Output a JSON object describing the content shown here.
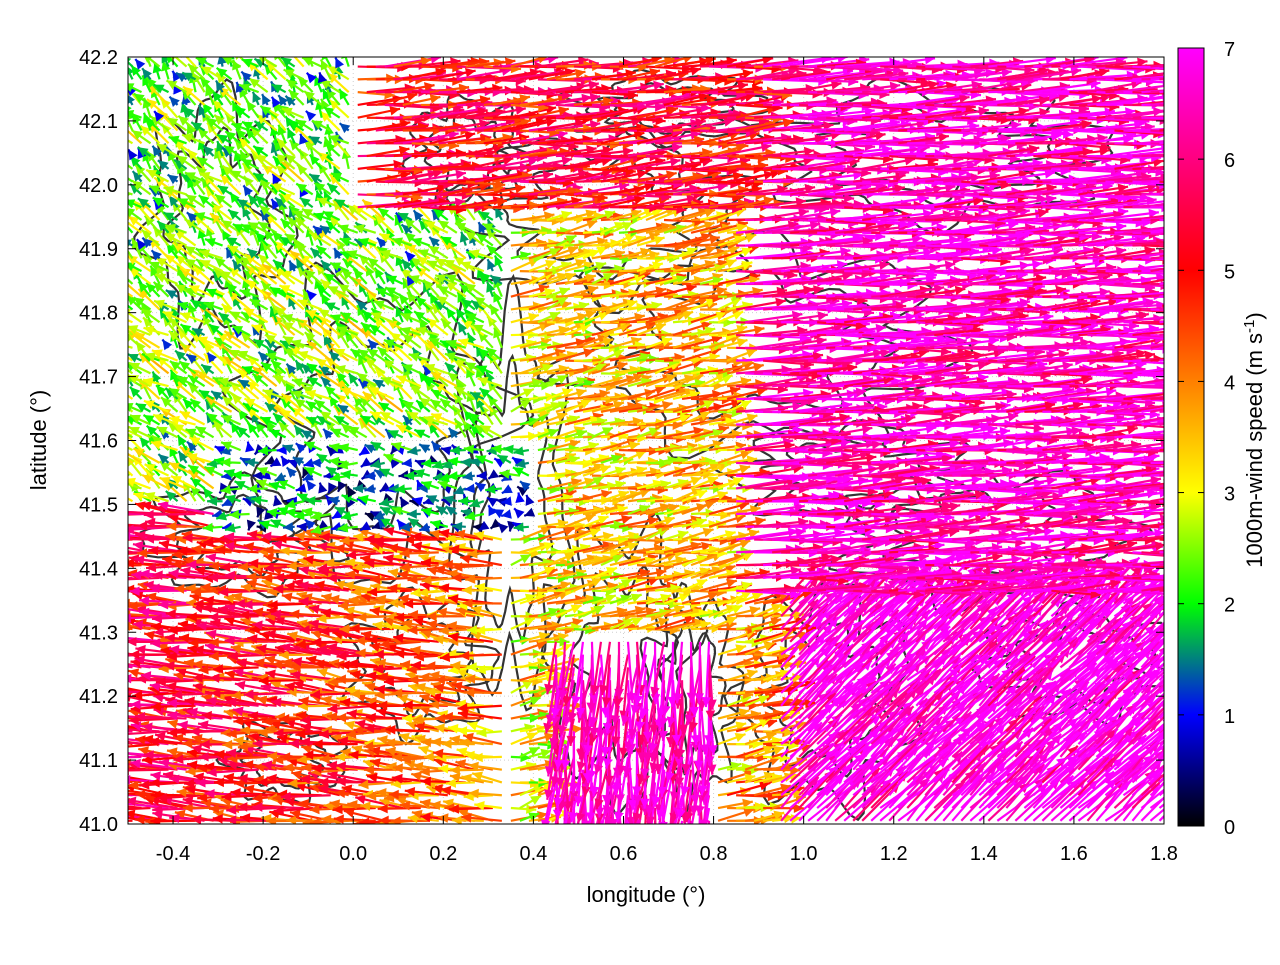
{
  "chart_data": {
    "type": "vector-field",
    "xlabel": "longitude (°)",
    "ylabel": "latitude (°)",
    "xlim": [
      -0.5,
      1.8
    ],
    "ylim": [
      41.0,
      42.2
    ],
    "xticks": [
      -0.4,
      -0.2,
      0.0,
      0.2,
      0.4,
      0.6,
      0.8,
      1.0,
      1.2,
      1.4,
      1.6,
      1.8
    ],
    "xtick_labels": [
      "-0.4",
      "-0.2",
      "0.0",
      "0.2",
      "0.4",
      "0.6",
      "0.8",
      "1.0",
      "1.2",
      "1.4",
      "1.6",
      "1.8"
    ],
    "yticks": [
      41.0,
      41.1,
      41.2,
      41.3,
      41.4,
      41.5,
      41.6,
      41.7,
      41.8,
      41.9,
      42.0,
      42.1,
      42.2
    ],
    "ytick_labels": [
      "41.0",
      "41.1",
      "41.2",
      "41.3",
      "41.4",
      "41.5",
      "41.6",
      "41.7",
      "41.8",
      "41.9",
      "42.0",
      "42.1",
      "42.2"
    ],
    "grid": true,
    "colorbar": {
      "label_main": "1000m-wind speed (m s",
      "label_sup": "-1",
      "label_close": ")",
      "range": [
        0,
        7
      ],
      "ticks": [
        0,
        1,
        2,
        3,
        4,
        5,
        6,
        7
      ],
      "tick_labels": [
        "0",
        "1",
        "2",
        "3",
        "4",
        "5",
        "6",
        "7"
      ],
      "colors": [
        "#000000",
        "#0000ff",
        "#00ff00",
        "#ffff00",
        "#ff8000",
        "#ff0000",
        "#ff00ff"
      ]
    },
    "wind_regimes": [
      {
        "region": "north-east",
        "direction": "east",
        "speed": 6.5
      },
      {
        "region": "south-east",
        "direction": "north-east",
        "speed": 7
      },
      {
        "region": "west",
        "direction": "west",
        "speed": 4.5
      },
      {
        "region": "center",
        "direction": "east",
        "speed": 3
      },
      {
        "region": "south-center",
        "direction": "south",
        "speed": 6.5
      }
    ],
    "vector_grid_spacing": [
      0.02,
      0.02
    ],
    "contours": "terrain elevation contours (unlabeled)"
  }
}
